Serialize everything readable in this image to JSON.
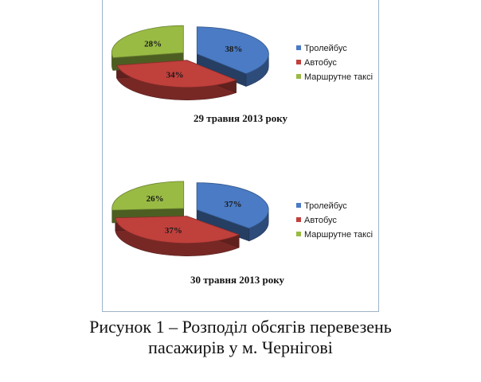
{
  "chart_data": [
    {
      "type": "pie",
      "categories": [
        "Тролейбус",
        "Автобус",
        "Маршрутне таксі"
      ],
      "values": [
        38,
        34,
        28
      ],
      "labels": [
        "38%",
        "34%",
        "28%"
      ],
      "colors": [
        "#4a7bc4",
        "#c0403c",
        "#99bb44"
      ],
      "title": "29 травня 2013 року",
      "legend": "right",
      "exploded": true,
      "three_d": true
    },
    {
      "type": "pie",
      "categories": [
        "Тролейбус",
        "Автобус",
        "Маршрутне таксі"
      ],
      "values": [
        37,
        37,
        26
      ],
      "labels": [
        "37%",
        "37%",
        "26%"
      ],
      "colors": [
        "#4a7bc4",
        "#c0403c",
        "#99bb44"
      ],
      "title": "30 травня 2013 року",
      "legend": "right",
      "exploded": true,
      "three_d": true
    }
  ],
  "caption": {
    "line1": "Рисунок 1 – Розподіл обсягів перевезень",
    "line2": "пасажирів у м. Чернігові"
  }
}
